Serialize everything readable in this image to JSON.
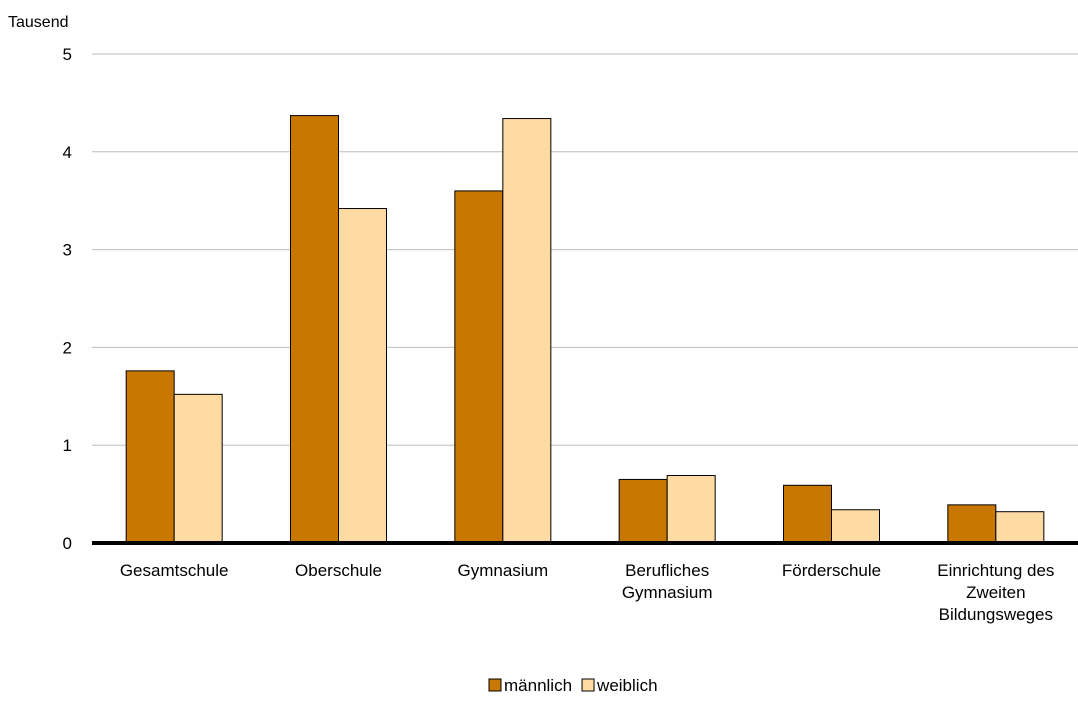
{
  "chart_data": {
    "type": "bar",
    "unit_label": "Tausend",
    "categories": [
      [
        "Gesamtschule"
      ],
      [
        "Oberschule"
      ],
      [
        "Gymnasium"
      ],
      [
        "Berufliches",
        "Gymnasium"
      ],
      [
        "Förderschule"
      ],
      [
        "Einrichtung des",
        "Zweiten",
        "Bildungsweges"
      ]
    ],
    "series": [
      {
        "name": "männlich",
        "color": "#C87800",
        "values": [
          1.76,
          4.37,
          3.6,
          0.65,
          0.59,
          0.39
        ]
      },
      {
        "name": "weiblich",
        "color": "#FDDBA3",
        "values": [
          1.52,
          3.42,
          4.34,
          0.69,
          0.34,
          0.32
        ]
      }
    ],
    "ylim": [
      0,
      5
    ],
    "yticks": [
      0,
      1,
      2,
      3,
      4,
      5
    ],
    "grid": true,
    "legend_position": "bottom"
  }
}
